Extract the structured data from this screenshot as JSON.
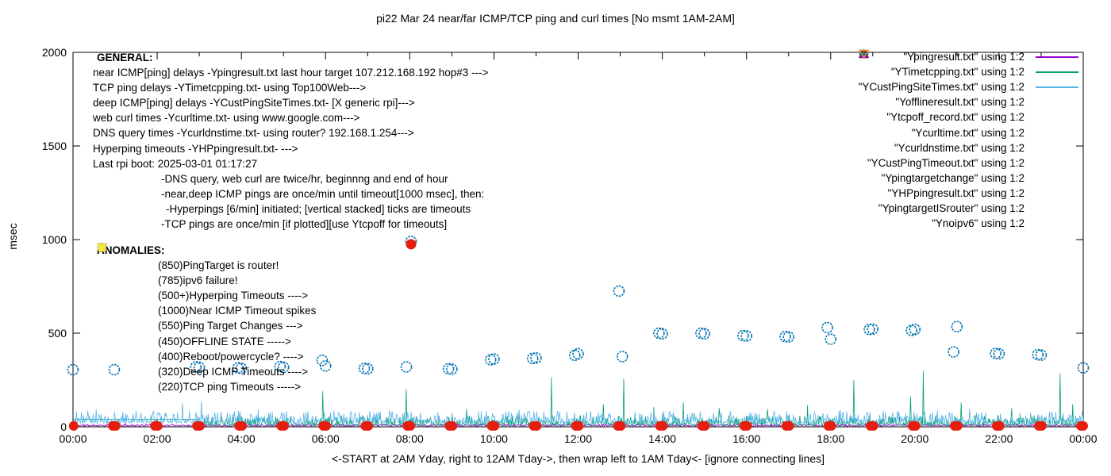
{
  "chart_data": {
    "type": "line",
    "title": "pi22 Mar 24  near/far ICMP/TCP ping and curl times [No msmt 1AM-2AM]",
    "xlabel": "<-START at 2AM Yday, right to 12AM Tday->, then wrap left to 1AM Tday<- [ignore connecting lines]",
    "ylabel": "msec",
    "ylim": [
      0,
      2000
    ],
    "xlim_hours": [
      0,
      24
    ],
    "y_ticks": [
      0,
      500,
      1000,
      1500,
      2000
    ],
    "x_ticks": [
      "00:00",
      "02:00",
      "04:00",
      "06:00",
      "08:00",
      "10:00",
      "12:00",
      "14:00",
      "16:00",
      "18:00",
      "20:00",
      "22:00",
      "00:00"
    ],
    "grid": false,
    "legend_position": "top-right-inside",
    "line_series": [
      {
        "name": "Ypingresult.txt",
        "color": "#9400d3",
        "baseline": 2.5,
        "noise_amp": 4,
        "spikes": [],
        "flat_segments": []
      },
      {
        "name": "YTimetcpping.txt",
        "color": "#009e73",
        "baseline": 6,
        "noise_amp": 22,
        "spikes": [
          [
            5.93,
            190
          ],
          [
            7.92,
            200
          ],
          [
            9.35,
            95
          ],
          [
            11.37,
            265
          ],
          [
            12.6,
            120
          ],
          [
            13.08,
            255
          ],
          [
            13.8,
            105
          ],
          [
            14.5,
            130
          ],
          [
            15.35,
            100
          ],
          [
            16.5,
            95
          ],
          [
            17.45,
            115
          ],
          [
            18.55,
            250
          ],
          [
            19.9,
            160
          ],
          [
            20.2,
            300
          ],
          [
            21.1,
            130
          ],
          [
            22.3,
            100
          ],
          [
            23.45,
            285
          ],
          [
            23.75,
            120
          ]
        ],
        "flat_segments": [
          [
            0,
            2.95,
            40
          ]
        ]
      },
      {
        "name": "YCustPingSiteTimes.txt",
        "color": "#56b4e9",
        "baseline": 18,
        "noise_amp": 28,
        "spikes": [
          [
            0.55,
            95
          ],
          [
            1.9,
            80
          ],
          [
            2.6,
            125
          ],
          [
            3.05,
            135
          ],
          [
            4.4,
            90
          ],
          [
            6.2,
            85
          ],
          [
            7.3,
            80
          ],
          [
            9.0,
            75
          ],
          [
            10.6,
            90
          ],
          [
            12.3,
            85
          ],
          [
            14.9,
            80
          ],
          [
            16.2,
            75
          ],
          [
            18.2,
            85
          ],
          [
            19.3,
            80
          ],
          [
            21.3,
            95
          ],
          [
            22.5,
            75
          ],
          [
            23.2,
            80
          ]
        ],
        "flat_segments": []
      }
    ],
    "curl_series": {
      "name": "Ycurltime.txt",
      "color": "#0072b2",
      "marker": "circle-open",
      "points": [
        [
          0,
          305
        ],
        [
          0.98,
          305
        ],
        [
          2.92,
          320
        ],
        [
          3.0,
          318
        ],
        [
          3.92,
          315
        ],
        [
          4.0,
          312
        ],
        [
          4.92,
          322
        ],
        [
          5.0,
          318
        ],
        [
          5.92,
          355
        ],
        [
          6.0,
          325
        ],
        [
          6.92,
          312
        ],
        [
          7.0,
          310
        ],
        [
          7.92,
          320
        ],
        [
          8.03,
          990
        ],
        [
          8.92,
          310
        ],
        [
          9.0,
          308
        ],
        [
          9.92,
          358
        ],
        [
          10.0,
          362
        ],
        [
          10.92,
          365
        ],
        [
          11.0,
          368
        ],
        [
          11.92,
          382
        ],
        [
          12.0,
          390
        ],
        [
          12.97,
          725
        ],
        [
          13.05,
          375
        ],
        [
          13.92,
          500
        ],
        [
          14.0,
          497
        ],
        [
          14.92,
          500
        ],
        [
          15.0,
          497
        ],
        [
          15.92,
          487
        ],
        [
          16.0,
          485
        ],
        [
          16.92,
          482
        ],
        [
          17.0,
          480
        ],
        [
          17.92,
          530
        ],
        [
          18.0,
          468
        ],
        [
          18.92,
          520
        ],
        [
          19.0,
          522
        ],
        [
          19.92,
          515
        ],
        [
          20.0,
          520
        ],
        [
          20.92,
          400
        ],
        [
          21.0,
          535
        ],
        [
          21.92,
          392
        ],
        [
          22.0,
          390
        ],
        [
          22.92,
          385
        ],
        [
          23.0,
          383
        ],
        [
          24.0,
          315
        ]
      ]
    },
    "dns_series": {
      "name": "Ycurldnstime.txt",
      "color": "#e51e10",
      "marker": "circle-filled",
      "base_value": 5,
      "hourly_pair_hours": [
        0,
        1,
        2,
        3,
        4,
        5,
        6,
        7,
        8,
        9,
        10,
        11,
        12,
        13,
        14,
        15,
        16,
        17,
        18,
        19,
        20,
        21,
        22,
        23,
        24
      ],
      "outliers": [
        [
          8.03,
          975
        ]
      ]
    }
  },
  "general": {
    "heading": "GENERAL:",
    "lines": [
      {
        "text": "near ICMP[ping] delays -Ypingresult.txt last hour target 107.212.168.192 hop#3 --->",
        "indent": 0
      },
      {
        "text": "TCP ping delays -YTimetcpping.txt- using Top100Web--->",
        "indent": 0
      },
      {
        "text": "deep ICMP[ping] delays -YCustPingSiteTimes.txt- [X generic rpi]--->",
        "indent": 0
      },
      {
        "text": "web curl times -Ycurltime.txt- using www.google.com--->",
        "indent": 0
      },
      {
        "text": "DNS query times -Ycurldnstime.txt- using router? 192.168.1.254--->",
        "indent": 0
      },
      {
        "text": "Hyperping timeouts -YHPpingresult.txt- --->",
        "indent": 0
      },
      {
        "text": "Last rpi boot: 2025-03-01 01:17:27",
        "indent": 0
      },
      {
        "text": "-DNS query, web curl are twice/hr, beginnng and end of hour",
        "indent": 1
      },
      {
        "text": "-near,deep ICMP pings are once/min until timeout[1000 msec], then:",
        "indent": 1
      },
      {
        "text": "-Hyperpings [6/min] initiated; [vertical stacked] ticks are timeouts",
        "indent": 2
      },
      {
        "text": "-TCP pings are once/min [if plotted][use Ytcpoff for timeouts]",
        "indent": 1
      }
    ]
  },
  "anomalies": {
    "heading": "ANOMALIES:",
    "items": [
      {
        "marker": "triangle-down-open",
        "color": "#56b4e9",
        "text": "(850)PingTarget is router!"
      },
      {
        "marker": "triangle-down-open",
        "color": "#e69f00",
        "text": "(785)ipv6 failure!"
      },
      {
        "marker": "plus",
        "color": "#009e73",
        "text": "(500+)Hyperping Timeouts ---->"
      },
      {
        "marker": "none",
        "color": "",
        "text": "(1000)Near ICMP Timeout spikes"
      },
      {
        "marker": "triangle-up-filled",
        "color": "#9400d3",
        "text": "(550)Ping Target Changes --->"
      },
      {
        "marker": "square-open",
        "color": "#e69f00",
        "text": "(450)OFFLINE STATE ----->"
      },
      {
        "marker": "none",
        "color": "",
        "text": "(400)Reboot/powercycle? ---->"
      },
      {
        "marker": "triangle-up-open",
        "color": "#000000",
        "text": "(320)Deep ICMP Timeouts ---->"
      },
      {
        "marker": "square-filled",
        "color": "#f0e442",
        "text": "(220)TCP ping Timeouts ----->"
      }
    ]
  },
  "legend": {
    "items": [
      {
        "label": "\"Ypingresult.txt\" using 1:2",
        "marker": "line",
        "color": "#9400d3"
      },
      {
        "label": "\"YTimetcpping.txt\" using 1:2",
        "marker": "line",
        "color": "#009e73"
      },
      {
        "label": "\"YCustPingSiteTimes.txt\" using 1:2",
        "marker": "line",
        "color": "#56b4e9"
      },
      {
        "label": "\"Yofflineresult.txt\" using 1:2",
        "marker": "square-open",
        "color": "#e69f00"
      },
      {
        "label": "\"Ytcpoff_record.txt\" using 1:2",
        "marker": "square-filled",
        "color": "#f0e442"
      },
      {
        "label": "\"Ycurltime.txt\" using 1:2",
        "marker": "circle-open",
        "color": "#0072b2"
      },
      {
        "label": "\"Ycurldnstime.txt\" using 1:2",
        "marker": "circle-filled",
        "color": "#e51e10"
      },
      {
        "label": "\"YCustPingTimeout.txt\" using 1:2",
        "marker": "triangle-up-open",
        "color": "#000000"
      },
      {
        "label": "\"Ypingtargetchange\" using 1:2",
        "marker": "triangle-up-filled",
        "color": "#9400d3"
      },
      {
        "label": "\"YHPpingresult.txt\" using 1:2",
        "marker": "plus",
        "color": "#009e73"
      },
      {
        "label": "\"YpingtargetISrouter\" using 1:2",
        "marker": "triangle-down-open",
        "color": "#56b4e9"
      },
      {
        "label": "\"Ynoipv6\" using 1:2",
        "marker": "triangle-down-open",
        "color": "#e69f00"
      }
    ]
  }
}
